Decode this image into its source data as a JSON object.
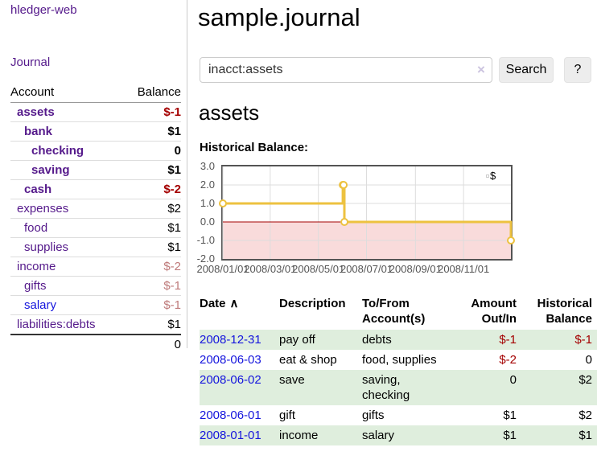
{
  "app_title": "hledger-web",
  "sidebar": {
    "journal_link": "Journal",
    "accounts": {
      "header_account": "Account",
      "header_balance": "Balance",
      "rows": [
        {
          "name": "assets",
          "balance": "$-1"
        },
        {
          "name": "bank",
          "balance": "$1"
        },
        {
          "name": "checking",
          "balance": "0"
        },
        {
          "name": "saving",
          "balance": "$1"
        },
        {
          "name": "cash",
          "balance": "$-2"
        },
        {
          "name": "expenses",
          "balance": "$2"
        },
        {
          "name": "food",
          "balance": "$1"
        },
        {
          "name": "supplies",
          "balance": "$1"
        },
        {
          "name": "income",
          "balance": "$-2"
        },
        {
          "name": "gifts",
          "balance": "$-1"
        },
        {
          "name": "salary",
          "balance": "$-1"
        },
        {
          "name": "liabilities:debts",
          "balance": "$1"
        }
      ],
      "total": "0"
    }
  },
  "main": {
    "title": "sample.journal",
    "search": {
      "value": "inacct:assets",
      "clear_icon": "×",
      "search_button": "Search",
      "help_button": "?"
    },
    "account_heading": "assets",
    "chart_title": "Historical Balance:"
  },
  "register": {
    "headers": {
      "date": "Date",
      "sort_arrow": "∧",
      "description": "Description",
      "account": "To/From Account(s)",
      "amount": "Amount Out/In",
      "balance": "Historical Balance"
    },
    "rows": [
      {
        "date": "2008-12-31",
        "description": "pay off",
        "account": "debts",
        "amount": "$-1",
        "balance": "$-1"
      },
      {
        "date": "2008-06-03",
        "description": "eat & shop",
        "account": "food, supplies",
        "amount": "$-2",
        "balance": "0"
      },
      {
        "date": "2008-06-02",
        "description": "save",
        "account": "saving, checking",
        "amount": "0",
        "balance": "$2"
      },
      {
        "date": "2008-06-01",
        "description": "gift",
        "account": "gifts",
        "amount": "$1",
        "balance": "$2"
      },
      {
        "date": "2008-01-01",
        "description": "income",
        "account": "salary",
        "amount": "$1",
        "balance": "$1"
      }
    ]
  },
  "chart_data": {
    "type": "line",
    "title": "Historical Balance",
    "step": true,
    "series": [
      {
        "name": "$",
        "points": [
          [
            "2008-01-01",
            1
          ],
          [
            "2008-06-01",
            2
          ],
          [
            "2008-06-02",
            2
          ],
          [
            "2008-06-03",
            0
          ],
          [
            "2008-12-31",
            -1
          ]
        ]
      }
    ],
    "x_ticks": [
      "2008/01/01",
      "2008/03/01",
      "2008/05/01",
      "2008/07/01",
      "2008/09/01",
      "2008/11/01"
    ],
    "y_ticks": [
      "3.0",
      "2.0",
      "1.0",
      "0.0",
      "-1.0",
      "-2.0"
    ],
    "ylim": [
      -2,
      3
    ],
    "xlim": [
      "2008-01-01",
      "2008-12-31"
    ],
    "legend_position": "top-right",
    "grid": true,
    "line_color": "#EDC240",
    "negative_region_color": "#F9DBDB",
    "zero_line_color": "#A40000",
    "gridline_color": "#DDDDDD"
  }
}
